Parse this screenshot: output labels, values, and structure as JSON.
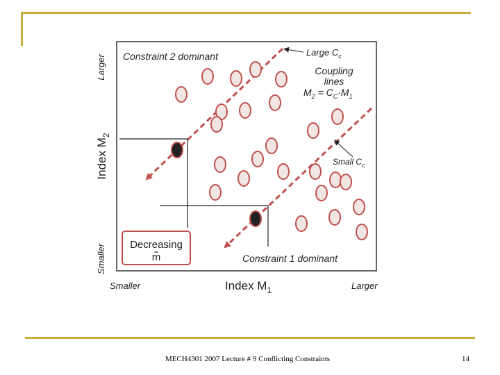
{
  "slide": {
    "footer_title": "MECH4301 2007 Lecture # 9 Conflicting Constraints",
    "page_number": "14"
  },
  "diagram": {
    "y_axis_label": "Index M",
    "y_axis_sub": "2",
    "x_axis_label": "Index M",
    "x_axis_sub": "1",
    "y_top": "Larger",
    "y_bottom": "Smaller",
    "x_left": "Smaller",
    "x_right": "Larger",
    "region_top": "Constraint 2 dominant",
    "region_bottom": "Constraint 1 dominant",
    "large_cc": "Large C",
    "large_cc_sub": "c",
    "small_cc": "Small C",
    "small_cc_sub": "c",
    "coupling_line1": "Coupling",
    "coupling_line2": "lines",
    "coupling_eq_m2": "M",
    "coupling_eq_sub2": "2",
    "coupling_eq_mid": " = C",
    "coupling_eq_subc": "C",
    "coupling_eq_dot": "·M",
    "coupling_eq_sub1": "1",
    "decreasing": "Decreasing",
    "m_tilde": "m̃"
  },
  "colors": {
    "accent_gold": "#c8ad3a",
    "material_red": "#c0504d",
    "material_fill": "#f1e6e4",
    "selected_fill": "#222222"
  }
}
